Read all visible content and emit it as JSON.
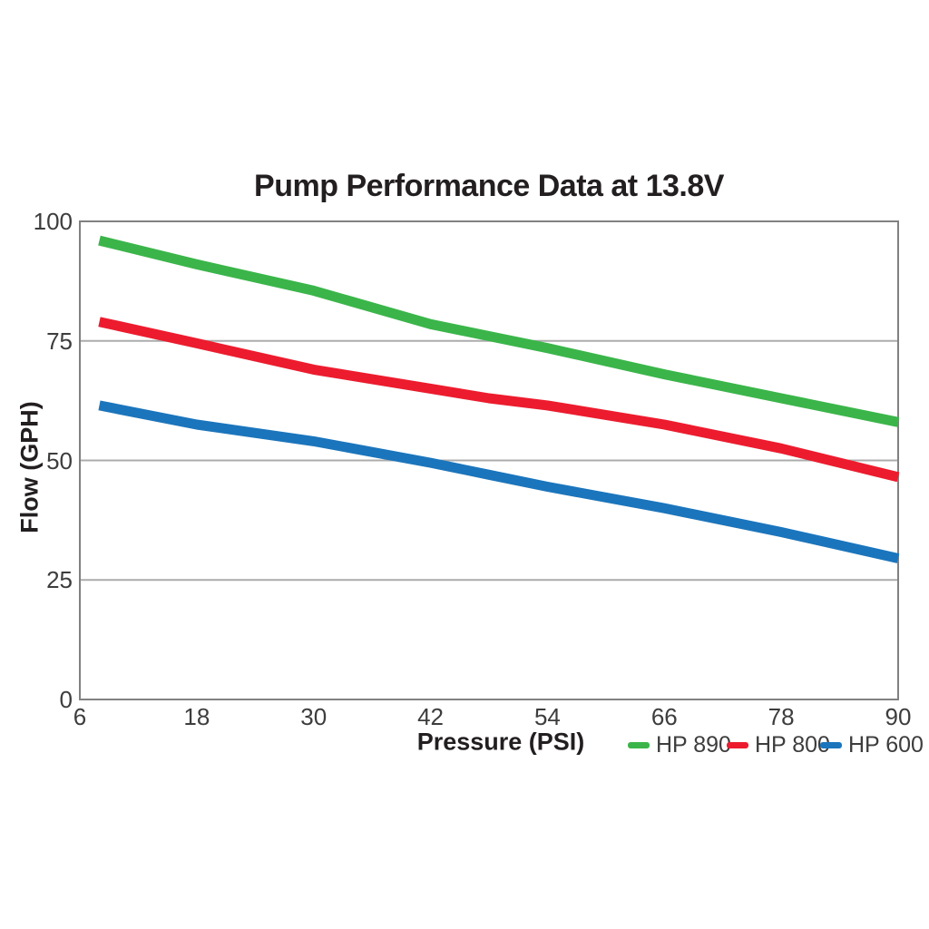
{
  "title": "Pump Performance Data at 13.8V",
  "chart_data": {
    "type": "line",
    "title": "Pump Performance Data at 13.8V",
    "xlabel": "Pressure (PSI)",
    "ylabel": "Flow (GPH)",
    "xlim": [
      6,
      90
    ],
    "ylim": [
      0,
      100
    ],
    "x_ticks": [
      6,
      18,
      30,
      42,
      54,
      66,
      78,
      90
    ],
    "y_ticks": [
      0,
      25,
      50,
      75,
      100
    ],
    "grid": "horizontal gridlines at 25, 50, 75",
    "legend_position": "bottom-right below x-axis",
    "series": [
      {
        "name": "HP 890",
        "color": "#3BB54A",
        "points": [
          [
            8,
            96
          ],
          [
            18,
            91
          ],
          [
            30,
            85.5
          ],
          [
            42,
            78.5
          ],
          [
            48,
            76
          ],
          [
            54,
            73.5
          ],
          [
            66,
            68
          ],
          [
            78,
            63
          ],
          [
            90,
            58
          ]
        ]
      },
      {
        "name": "HP 800",
        "color": "#EC1C2E",
        "points": [
          [
            8,
            79
          ],
          [
            18,
            74.5
          ],
          [
            30,
            69
          ],
          [
            42,
            65
          ],
          [
            48,
            63
          ],
          [
            54,
            61.5
          ],
          [
            66,
            57.5
          ],
          [
            78,
            52.5
          ],
          [
            90,
            46.5
          ]
        ]
      },
      {
        "name": "HP 600",
        "color": "#1B75BC",
        "points": [
          [
            8,
            61.5
          ],
          [
            18,
            57.5
          ],
          [
            30,
            54
          ],
          [
            42,
            49.5
          ],
          [
            48,
            47
          ],
          [
            54,
            44.5
          ],
          [
            66,
            40
          ],
          [
            78,
            35
          ],
          [
            90,
            29.5
          ]
        ]
      }
    ],
    "colors": {
      "grid": "#ACACAC",
      "border": "#818181",
      "tick_text": "#3D3D3D",
      "label_text": "#231F20"
    }
  }
}
